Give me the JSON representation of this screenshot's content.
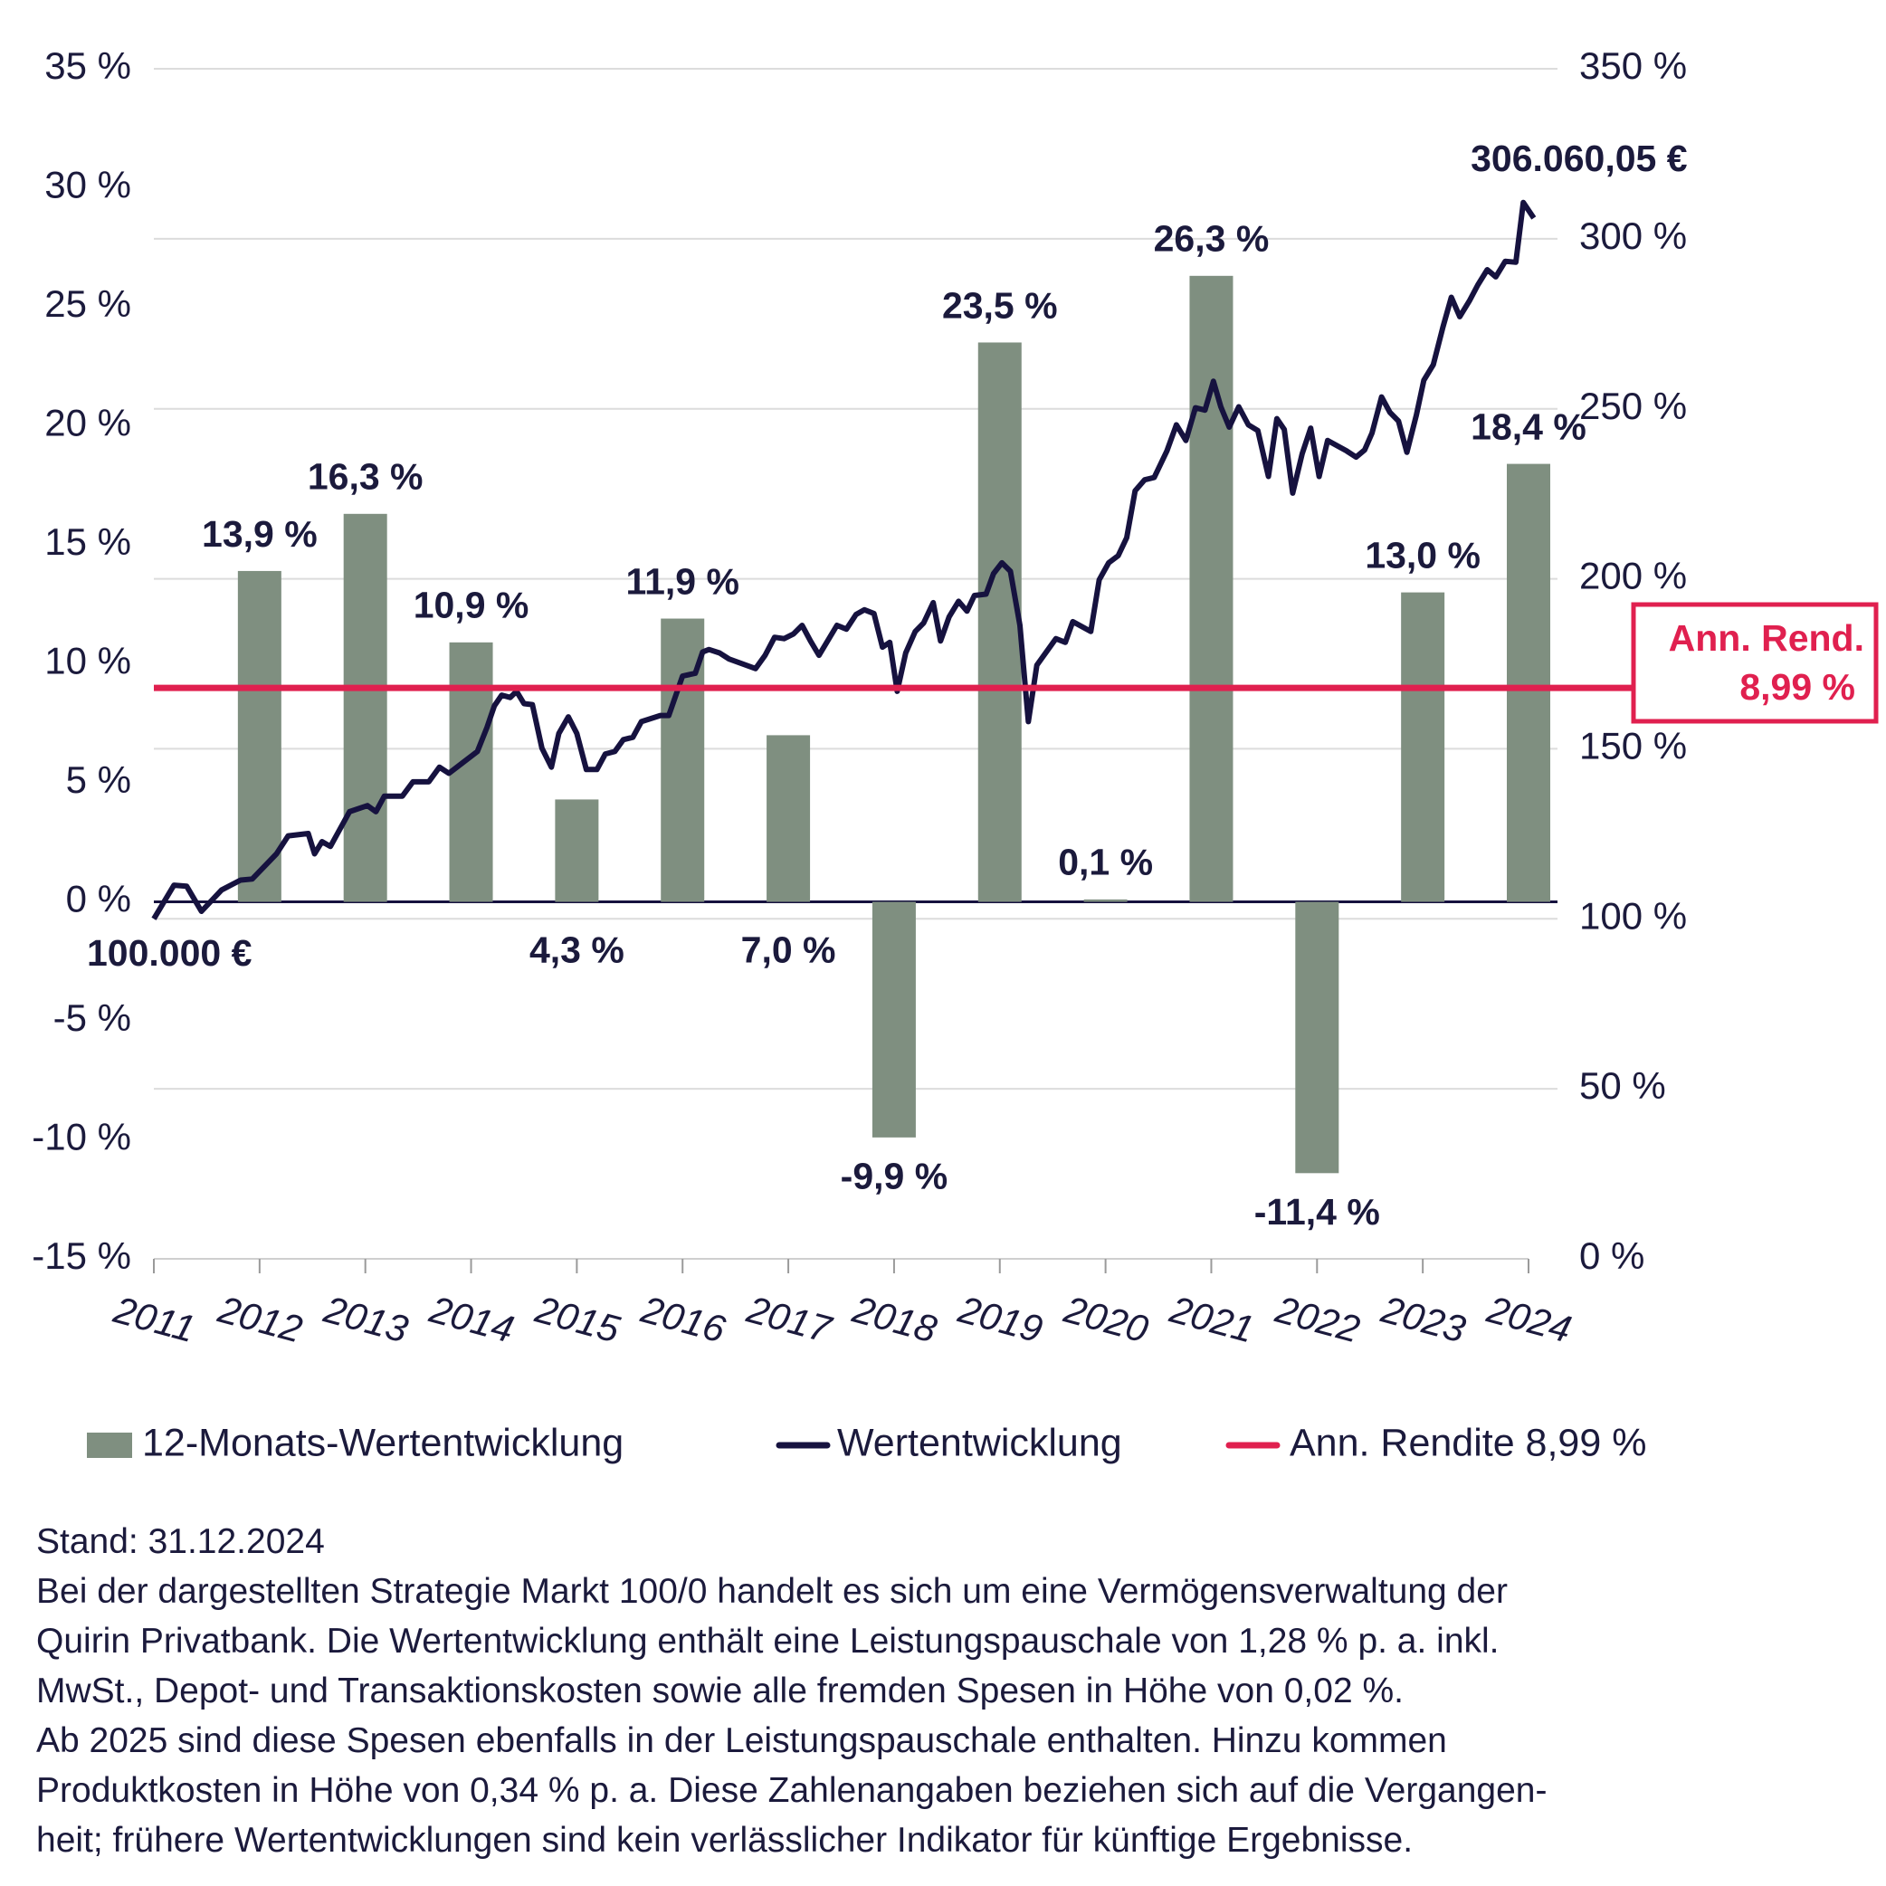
{
  "chart_data": {
    "type": "combo",
    "xlim": [
      2011,
      2024
    ],
    "xticks": [
      2011,
      2012,
      2013,
      2014,
      2015,
      2016,
      2017,
      2018,
      2019,
      2020,
      2021,
      2022,
      2023,
      2024
    ],
    "ylim": [
      -15,
      35
    ],
    "yticks": [
      {
        "value": -15,
        "label": "-15 %"
      },
      {
        "value": -10,
        "label": "-10 %"
      },
      {
        "value": -5,
        "label": "-5 %"
      },
      {
        "value": 0,
        "label": "0 %"
      },
      {
        "value": 5,
        "label": "5 %"
      },
      {
        "value": 10,
        "label": "10 %"
      },
      {
        "value": 15,
        "label": "15 %"
      },
      {
        "value": 20,
        "label": "20 %"
      },
      {
        "value": 25,
        "label": "25 %"
      },
      {
        "value": 30,
        "label": "30 %"
      },
      {
        "value": 35,
        "label": "35 %"
      }
    ],
    "y2lim": [
      0,
      350
    ],
    "y2ticks": [
      {
        "value": 0,
        "label": "0 %"
      },
      {
        "value": 50,
        "label": "50 %"
      },
      {
        "value": 100,
        "label": "100 %"
      },
      {
        "value": 150,
        "label": "150 %"
      },
      {
        "value": 200,
        "label": "200 %"
      },
      {
        "value": 250,
        "label": "250 %"
      },
      {
        "value": 300,
        "label": "300 %"
      },
      {
        "value": 350,
        "label": "350 %"
      }
    ],
    "grid": true,
    "series": [
      {
        "name": "12-Monats-Wertentwicklung",
        "type": "bar",
        "color": "#7f8f80",
        "x": [
          2012,
          2013,
          2014,
          2015,
          2016,
          2017,
          2018,
          2019,
          2020,
          2021,
          2022,
          2023,
          2024
        ],
        "values": [
          13.9,
          16.3,
          10.9,
          4.3,
          11.9,
          7.0,
          -9.9,
          23.5,
          0.1,
          26.3,
          -11.4,
          13.0,
          18.4
        ],
        "value_labels": [
          "13,9 %",
          "16,3 %",
          "10,9 %",
          "4,3 %",
          "11,9 %",
          "7,0 %",
          "-9,9 %",
          "23,5 %",
          "0,1 %",
          "26,3 %",
          "-11,4 %",
          "13,0 %",
          "18,4 %"
        ]
      },
      {
        "name": "Wertentwicklung",
        "type": "line",
        "axis": "y2",
        "color": "#16123f",
        "start_label": "100.000 €",
        "end_label": "306.060,05 €",
        "x": [
          2011.0,
          2011.19,
          2011.31,
          2011.45,
          2011.64,
          2011.82,
          2011.93,
          2012.16,
          2012.27,
          2012.46,
          2012.52,
          2012.59,
          2012.67,
          2012.85,
          2013.02,
          2013.1,
          2013.18,
          2013.35,
          2013.45,
          2013.6,
          2013.7,
          2013.79,
          2014.06,
          2014.15,
          2014.22,
          2014.29,
          2014.37,
          2014.43,
          2014.5,
          2014.58,
          2014.67,
          2014.76,
          2014.83,
          2014.92,
          2015.0,
          2015.09,
          2015.19,
          2015.27,
          2015.36,
          2015.44,
          2015.53,
          2015.61,
          2015.79,
          2015.87,
          2016.0,
          2016.12,
          2016.19,
          2016.25,
          2016.35,
          2016.44,
          2016.69,
          2016.78,
          2016.87,
          2016.96,
          2017.05,
          2017.13,
          2017.21,
          2017.29,
          2017.46,
          2017.55,
          2017.64,
          2017.72,
          2017.81,
          2017.89,
          2017.96,
          2018.03,
          2018.11,
          2018.2,
          2018.28,
          2018.37,
          2018.44,
          2018.52,
          2018.61,
          2018.69,
          2018.76,
          2018.87,
          2018.94,
          2019.02,
          2019.1,
          2019.19,
          2019.27,
          2019.35,
          2019.53,
          2019.62,
          2019.69,
          2019.86,
          2019.94,
          2020.03,
          2020.12,
          2020.2,
          2020.28,
          2020.37,
          2020.46,
          2020.58,
          2020.67,
          2020.76,
          2020.85,
          2020.94,
          2021.02,
          2021.09,
          2021.17,
          2021.26,
          2021.35,
          2021.44,
          2021.54,
          2021.62,
          2021.69,
          2021.77,
          2021.86,
          2021.94,
          2022.02,
          2022.1,
          2022.28,
          2022.37,
          2022.45,
          2022.52,
          2022.61,
          2022.69,
          2022.77,
          2022.85,
          2022.94,
          2023.01,
          2023.1,
          2023.19,
          2023.27,
          2023.35,
          2023.44,
          2023.52,
          2023.61,
          2023.69,
          2023.78,
          2023.88,
          2023.95,
          2024.05
        ],
        "values": [
          100,
          109.9,
          109.6,
          102.2,
          108.5,
          111.4,
          111.7,
          119.1,
          124.4,
          125.1,
          119.1,
          122.7,
          121.3,
          131.5,
          133.3,
          131.5,
          136.1,
          136.1,
          140.3,
          140.3,
          144.6,
          142.8,
          149.2,
          156.3,
          162.6,
          165.8,
          165.1,
          166.9,
          163.3,
          163.0,
          150.2,
          144.6,
          154.5,
          159.4,
          154.5,
          143.9,
          143.9,
          148.5,
          149.2,
          152.7,
          153.4,
          158.0,
          159.8,
          159.8,
          171.4,
          172.2,
          178.5,
          179.2,
          178.2,
          176.4,
          173.6,
          177.5,
          182.8,
          182.4,
          183.8,
          186.3,
          181.7,
          177.5,
          186.3,
          185.2,
          189.5,
          190.9,
          189.8,
          179.9,
          181.3,
          166.9,
          178.2,
          184.5,
          187.0,
          193.0,
          181.7,
          188.8,
          193.4,
          190.5,
          195.1,
          195.5,
          201.5,
          204.7,
          202.2,
          186.3,
          158.0,
          174.6,
          182.4,
          181.3,
          187.4,
          184.5,
          199.7,
          204.7,
          206.8,
          212.1,
          225.9,
          229.1,
          229.8,
          237.6,
          245.3,
          240.7,
          250.3,
          249.6,
          258.1,
          250.6,
          244.6,
          250.6,
          245.3,
          243.6,
          230.1,
          247.1,
          243.9,
          225.2,
          236.8,
          244.3,
          230.1,
          240.7,
          237.6,
          235.8,
          237.9,
          242.9,
          253.5,
          248.9,
          246.4,
          237.2,
          248.2,
          258.4,
          263.0,
          274.0,
          282.8,
          277.1,
          281.7,
          286.4,
          290.9,
          288.8,
          293.4,
          293.1,
          310.7,
          306.1
        ]
      }
    ],
    "reference_line": {
      "name": "Ann. Rendite 8,99 %",
      "value": 8.99,
      "color": "#e0204f",
      "label": "Ann. Rend.",
      "value_label": "8,99 %"
    },
    "footnote": [
      "Stand: 31.12.2024",
      "Bei der dargestellten Strategie Markt 100/0 handelt es sich um eine Vermögensverwaltung der",
      "Quirin Privatbank. Die Wertentwicklung enthält eine Leistungspauschale von 1,28 % p. a. inkl.",
      "MwSt., Depot- und Transaktionskosten sowie alle fremden Spesen in Höhe von 0,02 %.",
      "Ab 2025 sind diese Spesen ebenfalls in der Leistungspauschale enthalten. Hinzu kommen",
      "Produktkosten in Höhe von 0,34 % p. a. Diese Zahlenangaben beziehen sich auf die Vergangen-",
      "heit; frühere Wertentwicklungen sind kein verlässlicher Indikator für künftige Ergebnisse."
    ]
  }
}
